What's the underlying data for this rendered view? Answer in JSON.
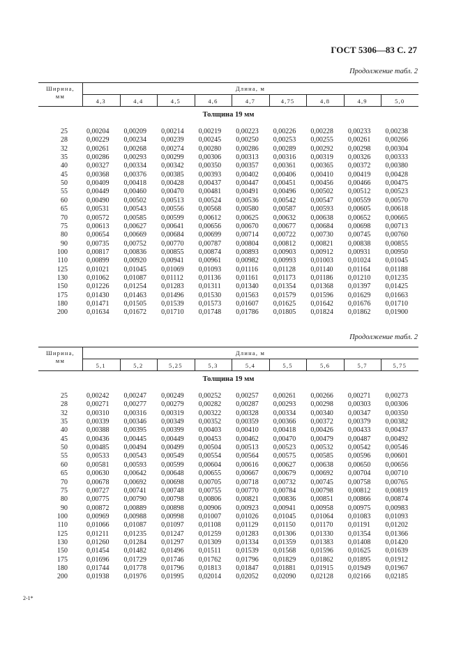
{
  "header": {
    "title": "ГОСТ 5306—83 С. 27"
  },
  "tables": [
    {
      "caption": "Продолжение табл. 2",
      "row_header": [
        "Ширина,",
        "мм"
      ],
      "column_group": "Длина, м",
      "columns": [
        "4,3",
        "4,4",
        "4,5",
        "4,6",
        "4,7",
        "4,75",
        "4,8",
        "4,9",
        "5,0"
      ],
      "subheader": "Толщина 19 мм",
      "rows": [
        [
          "25",
          "0,00204",
          "0,00209",
          "0,00214",
          "0,00219",
          "0,00223",
          "0,00226",
          "0,00228",
          "0,00233",
          "0,00238"
        ],
        [
          "28",
          "0,00229",
          "0,00234",
          "0,00239",
          "0,00245",
          "0,00250",
          "0,00253",
          "0,00255",
          "0,00261",
          "0,00266"
        ],
        [
          "32",
          "0,00261",
          "0,00268",
          "0,00274",
          "0,00280",
          "0,00286",
          "0,00289",
          "0,00292",
          "0,00298",
          "0,00304"
        ],
        [
          "35",
          "0,00286",
          "0,00293",
          "0,00299",
          "0,00306",
          "0,00313",
          "0,00316",
          "0,00319",
          "0,00326",
          "0,00333"
        ],
        [
          "40",
          "0,00327",
          "0,00334",
          "0,00342",
          "0,00350",
          "0,00357",
          "0,00361",
          "0,00365",
          "0,00372",
          "0,00380"
        ],
        [
          "45",
          "0,00368",
          "0,00376",
          "0,00385",
          "0,00393",
          "0,00402",
          "0,00406",
          "0,00410",
          "0,00419",
          "0,00428"
        ],
        [
          "50",
          "0,00409",
          "0,00418",
          "0,00428",
          "0,00437",
          "0,00447",
          "0,00451",
          "0,00456",
          "0,00466",
          "0,00475"
        ],
        [
          "55",
          "0,00449",
          "0,00460",
          "0,00470",
          "0,00481",
          "0,00491",
          "0,00496",
          "0,00502",
          "0,00512",
          "0,00523"
        ],
        [
          "60",
          "0,00490",
          "0,00502",
          "0,00513",
          "0,00524",
          "0,00536",
          "0,00542",
          "0,00547",
          "0,00559",
          "0,00570"
        ],
        [
          "65",
          "0,00531",
          "0,00543",
          "0,00556",
          "0,00568",
          "0,00580",
          "0,00587",
          "0,00593",
          "0,00605",
          "0,00618"
        ],
        [
          "70",
          "0,00572",
          "0,00585",
          "0,00599",
          "0,00612",
          "0,00625",
          "0,00632",
          "0,00638",
          "0,00652",
          "0,00665"
        ],
        [
          "75",
          "0,00613",
          "0,00627",
          "0,00641",
          "0,00656",
          "0,00670",
          "0,00677",
          "0,00684",
          "0,00698",
          "0,00713"
        ],
        [
          "80",
          "0,00654",
          "0,00669",
          "0,00684",
          "0,00699",
          "0,00714",
          "0,00722",
          "0,00730",
          "0,00745",
          "0,00760"
        ],
        [
          "90",
          "0,00735",
          "0,00752",
          "0,00770",
          "0,00787",
          "0,00804",
          "0,00812",
          "0,00821",
          "0,00838",
          "0,00855"
        ],
        [
          "100",
          "0,00817",
          "0,00836",
          "0,00855",
          "0,00874",
          "0,00893",
          "0,00903",
          "0,00912",
          "0,00931",
          "0,00950"
        ],
        [
          "110",
          "0,00899",
          "0,00920",
          "0,00941",
          "0,00961",
          "0,00982",
          "0,00993",
          "0,01003",
          "0,01024",
          "0,01045"
        ],
        [
          "125",
          "0,01021",
          "0,01045",
          "0,01069",
          "0,01093",
          "0,01116",
          "0,01128",
          "0,01140",
          "0,01164",
          "0,01188"
        ],
        [
          "130",
          "0,01062",
          "0,01087",
          "0,01112",
          "0,01136",
          "0,01161",
          "0,01173",
          "0,01186",
          "0,01210",
          "0,01235"
        ],
        [
          "150",
          "0,01226",
          "0,01254",
          "0,01283",
          "0,01311",
          "0,01340",
          "0,01354",
          "0,01368",
          "0,01397",
          "0,01425"
        ],
        [
          "175",
          "0,01430",
          "0,01463",
          "0,01496",
          "0,01530",
          "0,01563",
          "0,01579",
          "0,01596",
          "0,01629",
          "0,01663"
        ],
        [
          "180",
          "0,01471",
          "0,01505",
          "0,01539",
          "0,01573",
          "0,01607",
          "0,01625",
          "0,01642",
          "0,01676",
          "0,01710"
        ],
        [
          "200",
          "0,01634",
          "0,01672",
          "0,01710",
          "0,01748",
          "0,01786",
          "0,01805",
          "0,01824",
          "0,01862",
          "0,01900"
        ]
      ]
    },
    {
      "caption": "Продолжение табл. 2",
      "row_header": [
        "Ширина,",
        "мм"
      ],
      "column_group": "Длина, м",
      "columns": [
        "5,1",
        "5,2",
        "5,25",
        "5,3",
        "5,4",
        "5,5",
        "5,6",
        "5,7",
        "5,75"
      ],
      "subheader": "Толщина 19 мм",
      "rows": [
        [
          "25",
          "0,00242",
          "0,00247",
          "0,00249",
          "0,00252",
          "0,00257",
          "0,00261",
          "0,00266",
          "0,00271",
          "0,00273"
        ],
        [
          "28",
          "0,00271",
          "0,00277",
          "0,00279",
          "0,00282",
          "0,00287",
          "0,00293",
          "0,00298",
          "0,00303",
          "0,00306"
        ],
        [
          "32",
          "0,00310",
          "0,00316",
          "0,00319",
          "0,00322",
          "0,00328",
          "0,00334",
          "0,00340",
          "0,00347",
          "0,00350"
        ],
        [
          "35",
          "0,00339",
          "0,00346",
          "0,00349",
          "0,00352",
          "0,00359",
          "0,00366",
          "0,00372",
          "0,00379",
          "0,00382"
        ],
        [
          "40",
          "0,00388",
          "0,00395",
          "0,00399",
          "0,00403",
          "0,00410",
          "0,00418",
          "0,00426",
          "0,00433",
          "0,00437"
        ],
        [
          "45",
          "0,00436",
          "0,00445",
          "0,00449",
          "0,00453",
          "0,00462",
          "0,00470",
          "0,00479",
          "0,00487",
          "0,00492"
        ],
        [
          "50",
          "0,00485",
          "0,00494",
          "0,00499",
          "0,00504",
          "0,00513",
          "0,00523",
          "0,00532",
          "0,00542",
          "0,00546"
        ],
        [
          "55",
          "0,00533",
          "0,00543",
          "0,00549",
          "0,00554",
          "0,00564",
          "0,00575",
          "0,00585",
          "0,00596",
          "0,00601"
        ],
        [
          "60",
          "0,00581",
          "0,00593",
          "0,00599",
          "0,00604",
          "0,00616",
          "0,00627",
          "0,00638",
          "0,00650",
          "0,00656"
        ],
        [
          "65",
          "0,00630",
          "0,00642",
          "0,00648",
          "0,00655",
          "0,00667",
          "0,00679",
          "0,00692",
          "0,00704",
          "0,00710"
        ],
        [
          "70",
          "0,00678",
          "0,00692",
          "0,00698",
          "0,00705",
          "0,00718",
          "0,00732",
          "0,00745",
          "0,00758",
          "0,00765"
        ],
        [
          "75",
          "0,00727",
          "0,00741",
          "0,00748",
          "0,00755",
          "0,00770",
          "0,00784",
          "0,00798",
          "0,00812",
          "0,00819"
        ],
        [
          "80",
          "0,00775",
          "0,00790",
          "0,00798",
          "0,00806",
          "0,00821",
          "0,00836",
          "0,00851",
          "0,00866",
          "0,00874"
        ],
        [
          "90",
          "0,00872",
          "0,00889",
          "0,00898",
          "0,00906",
          "0,00923",
          "0,00941",
          "0,00958",
          "0,00975",
          "0,00983"
        ],
        [
          "100",
          "0,00969",
          "0,00988",
          "0,00998",
          "0,01007",
          "0,01026",
          "0,01045",
          "0,01064",
          "0,01083",
          "0,01093"
        ],
        [
          "110",
          "0,01066",
          "0,01087",
          "0,01097",
          "0,01108",
          "0,01129",
          "0,01150",
          "0,01170",
          "0,01191",
          "0,01202"
        ],
        [
          "125",
          "0,01211",
          "0,01235",
          "0,01247",
          "0,01259",
          "0,01283",
          "0,01306",
          "0,01330",
          "0,01354",
          "0,01366"
        ],
        [
          "130",
          "0,01260",
          "0,01284",
          "0,01297",
          "0,01309",
          "0,01334",
          "0,01359",
          "0,01383",
          "0,01408",
          "0,01420"
        ],
        [
          "150",
          "0,01454",
          "0,01482",
          "0,01496",
          "0,01511",
          "0,01539",
          "0,01568",
          "0,01596",
          "0,01625",
          "0,01639"
        ],
        [
          "175",
          "0,01696",
          "0,01729",
          "0,01746",
          "0,01762",
          "0,01796",
          "0,01829",
          "0,01862",
          "0,01895",
          "0,01912"
        ],
        [
          "180",
          "0,01744",
          "0,01778",
          "0,01796",
          "0,01813",
          "0,01847",
          "0,01881",
          "0,01915",
          "0,01949",
          "0,01967"
        ],
        [
          "200",
          "0,01938",
          "0,01976",
          "0,01995",
          "0,02014",
          "0,02052",
          "0,02090",
          "0,02128",
          "0,02166",
          "0,02185"
        ]
      ]
    }
  ],
  "footer": "2-1*"
}
